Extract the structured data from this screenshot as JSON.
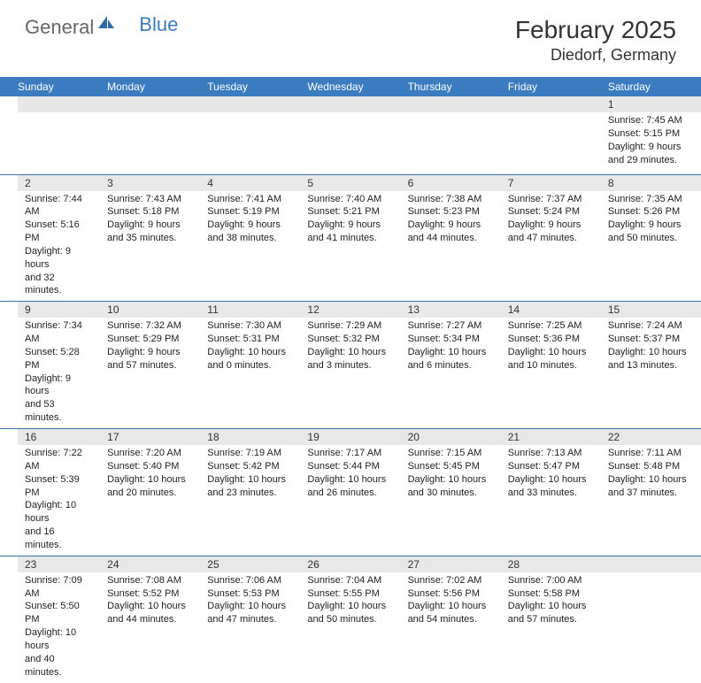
{
  "brand": {
    "name1": "General",
    "name2": "Blue"
  },
  "title": "February 2025",
  "location": "Diedorf, Germany",
  "colors": {
    "header_bg": "#3b7bbf",
    "header_text": "#ffffff",
    "daynum_bg": "#e8e8e8",
    "row_border": "#3b6fa8",
    "text": "#222222",
    "title_color": "#333333"
  },
  "fonts": {
    "title_size": 28,
    "location_size": 18,
    "header_size": 12,
    "cell_size": 11
  },
  "day_headers": [
    "Sunday",
    "Monday",
    "Tuesday",
    "Wednesday",
    "Thursday",
    "Friday",
    "Saturday"
  ],
  "weeks": [
    [
      {
        "empty": true
      },
      {
        "empty": true
      },
      {
        "empty": true
      },
      {
        "empty": true
      },
      {
        "empty": true
      },
      {
        "empty": true
      },
      {
        "n": "1",
        "sr": "Sunrise: 7:45 AM",
        "ss": "Sunset: 5:15 PM",
        "d1": "Daylight: 9 hours",
        "d2": "and 29 minutes."
      }
    ],
    [
      {
        "n": "2",
        "sr": "Sunrise: 7:44 AM",
        "ss": "Sunset: 5:16 PM",
        "d1": "Daylight: 9 hours",
        "d2": "and 32 minutes."
      },
      {
        "n": "3",
        "sr": "Sunrise: 7:43 AM",
        "ss": "Sunset: 5:18 PM",
        "d1": "Daylight: 9 hours",
        "d2": "and 35 minutes."
      },
      {
        "n": "4",
        "sr": "Sunrise: 7:41 AM",
        "ss": "Sunset: 5:19 PM",
        "d1": "Daylight: 9 hours",
        "d2": "and 38 minutes."
      },
      {
        "n": "5",
        "sr": "Sunrise: 7:40 AM",
        "ss": "Sunset: 5:21 PM",
        "d1": "Daylight: 9 hours",
        "d2": "and 41 minutes."
      },
      {
        "n": "6",
        "sr": "Sunrise: 7:38 AM",
        "ss": "Sunset: 5:23 PM",
        "d1": "Daylight: 9 hours",
        "d2": "and 44 minutes."
      },
      {
        "n": "7",
        "sr": "Sunrise: 7:37 AM",
        "ss": "Sunset: 5:24 PM",
        "d1": "Daylight: 9 hours",
        "d2": "and 47 minutes."
      },
      {
        "n": "8",
        "sr": "Sunrise: 7:35 AM",
        "ss": "Sunset: 5:26 PM",
        "d1": "Daylight: 9 hours",
        "d2": "and 50 minutes."
      }
    ],
    [
      {
        "n": "9",
        "sr": "Sunrise: 7:34 AM",
        "ss": "Sunset: 5:28 PM",
        "d1": "Daylight: 9 hours",
        "d2": "and 53 minutes."
      },
      {
        "n": "10",
        "sr": "Sunrise: 7:32 AM",
        "ss": "Sunset: 5:29 PM",
        "d1": "Daylight: 9 hours",
        "d2": "and 57 minutes."
      },
      {
        "n": "11",
        "sr": "Sunrise: 7:30 AM",
        "ss": "Sunset: 5:31 PM",
        "d1": "Daylight: 10 hours",
        "d2": "and 0 minutes."
      },
      {
        "n": "12",
        "sr": "Sunrise: 7:29 AM",
        "ss": "Sunset: 5:32 PM",
        "d1": "Daylight: 10 hours",
        "d2": "and 3 minutes."
      },
      {
        "n": "13",
        "sr": "Sunrise: 7:27 AM",
        "ss": "Sunset: 5:34 PM",
        "d1": "Daylight: 10 hours",
        "d2": "and 6 minutes."
      },
      {
        "n": "14",
        "sr": "Sunrise: 7:25 AM",
        "ss": "Sunset: 5:36 PM",
        "d1": "Daylight: 10 hours",
        "d2": "and 10 minutes."
      },
      {
        "n": "15",
        "sr": "Sunrise: 7:24 AM",
        "ss": "Sunset: 5:37 PM",
        "d1": "Daylight: 10 hours",
        "d2": "and 13 minutes."
      }
    ],
    [
      {
        "n": "16",
        "sr": "Sunrise: 7:22 AM",
        "ss": "Sunset: 5:39 PM",
        "d1": "Daylight: 10 hours",
        "d2": "and 16 minutes."
      },
      {
        "n": "17",
        "sr": "Sunrise: 7:20 AM",
        "ss": "Sunset: 5:40 PM",
        "d1": "Daylight: 10 hours",
        "d2": "and 20 minutes."
      },
      {
        "n": "18",
        "sr": "Sunrise: 7:19 AM",
        "ss": "Sunset: 5:42 PM",
        "d1": "Daylight: 10 hours",
        "d2": "and 23 minutes."
      },
      {
        "n": "19",
        "sr": "Sunrise: 7:17 AM",
        "ss": "Sunset: 5:44 PM",
        "d1": "Daylight: 10 hours",
        "d2": "and 26 minutes."
      },
      {
        "n": "20",
        "sr": "Sunrise: 7:15 AM",
        "ss": "Sunset: 5:45 PM",
        "d1": "Daylight: 10 hours",
        "d2": "and 30 minutes."
      },
      {
        "n": "21",
        "sr": "Sunrise: 7:13 AM",
        "ss": "Sunset: 5:47 PM",
        "d1": "Daylight: 10 hours",
        "d2": "and 33 minutes."
      },
      {
        "n": "22",
        "sr": "Sunrise: 7:11 AM",
        "ss": "Sunset: 5:48 PM",
        "d1": "Daylight: 10 hours",
        "d2": "and 37 minutes."
      }
    ],
    [
      {
        "n": "23",
        "sr": "Sunrise: 7:09 AM",
        "ss": "Sunset: 5:50 PM",
        "d1": "Daylight: 10 hours",
        "d2": "and 40 minutes."
      },
      {
        "n": "24",
        "sr": "Sunrise: 7:08 AM",
        "ss": "Sunset: 5:52 PM",
        "d1": "Daylight: 10 hours",
        "d2": "and 44 minutes."
      },
      {
        "n": "25",
        "sr": "Sunrise: 7:06 AM",
        "ss": "Sunset: 5:53 PM",
        "d1": "Daylight: 10 hours",
        "d2": "and 47 minutes."
      },
      {
        "n": "26",
        "sr": "Sunrise: 7:04 AM",
        "ss": "Sunset: 5:55 PM",
        "d1": "Daylight: 10 hours",
        "d2": "and 50 minutes."
      },
      {
        "n": "27",
        "sr": "Sunrise: 7:02 AM",
        "ss": "Sunset: 5:56 PM",
        "d1": "Daylight: 10 hours",
        "d2": "and 54 minutes."
      },
      {
        "n": "28",
        "sr": "Sunrise: 7:00 AM",
        "ss": "Sunset: 5:58 PM",
        "d1": "Daylight: 10 hours",
        "d2": "and 57 minutes."
      },
      {
        "empty": true
      }
    ]
  ]
}
